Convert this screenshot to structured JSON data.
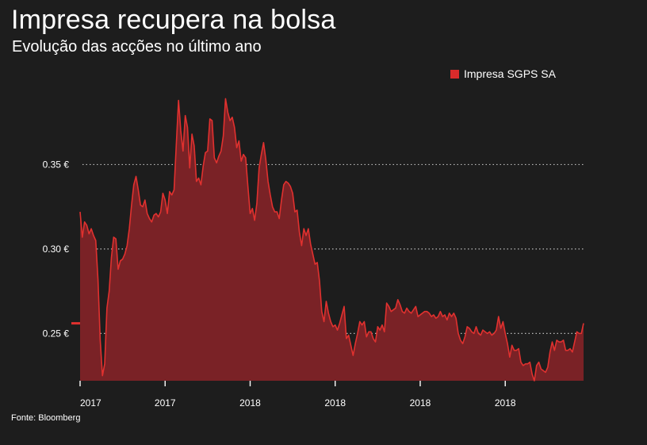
{
  "header": {
    "title": "Impresa recupera na bolsa",
    "subtitle": "Evolução das acções no último ano"
  },
  "footer": {
    "source": "Fonte: Bloomberg"
  },
  "colors": {
    "background": "#1d1d1d",
    "line": "#e0312f",
    "area": "#7a2226",
    "grid": "#bbbbbb"
  },
  "chart_data": {
    "type": "area",
    "title": "Impresa recupera na bolsa",
    "subtitle": "Evolução das acções no último ano",
    "xlabel": "",
    "ylabel": "",
    "ylim": [
      0.222,
      0.392
    ],
    "y_ticks": [
      0.25,
      0.3,
      0.35
    ],
    "y_tick_labels": [
      "0.25 €",
      "0.30 €",
      "0.35 €"
    ],
    "x_tick_labels": [
      "2017",
      "2017",
      "2018",
      "2018",
      "2018",
      "2018"
    ],
    "x_tick_positions": [
      0,
      38,
      76,
      114,
      152,
      190
    ],
    "grid": "horizontal-dotted",
    "legend": {
      "position": "top-right",
      "entries": [
        "Impresa SGPS SA"
      ]
    },
    "series": [
      {
        "name": "Impresa SGPS SA",
        "values": [
          0.322,
          0.307,
          0.316,
          0.314,
          0.309,
          0.312,
          0.308,
          0.305,
          0.282,
          0.246,
          0.225,
          0.232,
          0.265,
          0.275,
          0.295,
          0.307,
          0.306,
          0.288,
          0.293,
          0.294,
          0.297,
          0.302,
          0.312,
          0.326,
          0.338,
          0.343,
          0.335,
          0.326,
          0.325,
          0.329,
          0.321,
          0.318,
          0.316,
          0.32,
          0.321,
          0.319,
          0.322,
          0.333,
          0.329,
          0.321,
          0.334,
          0.332,
          0.335,
          0.362,
          0.388,
          0.37,
          0.358,
          0.379,
          0.372,
          0.348,
          0.368,
          0.361,
          0.34,
          0.342,
          0.338,
          0.349,
          0.357,
          0.358,
          0.377,
          0.376,
          0.354,
          0.351,
          0.355,
          0.358,
          0.367,
          0.389,
          0.381,
          0.376,
          0.378,
          0.372,
          0.36,
          0.364,
          0.352,
          0.356,
          0.354,
          0.337,
          0.321,
          0.324,
          0.317,
          0.327,
          0.348,
          0.356,
          0.363,
          0.353,
          0.34,
          0.332,
          0.325,
          0.322,
          0.322,
          0.318,
          0.329,
          0.338,
          0.34,
          0.339,
          0.337,
          0.333,
          0.322,
          0.323,
          0.31,
          0.302,
          0.312,
          0.308,
          0.312,
          0.303,
          0.297,
          0.291,
          0.292,
          0.281,
          0.263,
          0.257,
          0.269,
          0.262,
          0.257,
          0.254,
          0.255,
          0.252,
          0.256,
          0.261,
          0.266,
          0.247,
          0.249,
          0.243,
          0.237,
          0.244,
          0.25,
          0.257,
          0.255,
          0.257,
          0.248,
          0.251,
          0.251,
          0.247,
          0.245,
          0.254,
          0.252,
          0.255,
          0.251,
          0.268,
          0.266,
          0.263,
          0.264,
          0.265,
          0.27,
          0.267,
          0.263,
          0.262,
          0.265,
          0.263,
          0.262,
          0.264,
          0.266,
          0.26,
          0.261,
          0.262,
          0.263,
          0.263,
          0.262,
          0.26,
          0.261,
          0.259,
          0.26,
          0.263,
          0.26,
          0.261,
          0.258,
          0.262,
          0.26,
          0.262,
          0.259,
          0.25,
          0.246,
          0.244,
          0.248,
          0.254,
          0.253,
          0.251,
          0.25,
          0.254,
          0.25,
          0.249,
          0.252,
          0.251,
          0.25,
          0.251,
          0.249,
          0.25,
          0.252,
          0.26,
          0.253,
          0.257,
          0.25,
          0.244,
          0.236,
          0.243,
          0.24,
          0.24,
          0.241,
          0.233,
          0.231,
          0.232,
          0.232,
          0.233,
          0.226,
          0.222,
          0.231,
          0.233,
          0.229,
          0.228,
          0.227,
          0.23,
          0.239,
          0.245,
          0.24,
          0.246,
          0.245,
          0.245,
          0.246,
          0.24,
          0.24,
          0.241,
          0.239,
          0.245,
          0.251,
          0.25,
          0.25,
          0.256
        ]
      }
    ],
    "start_marker_value": 0.256
  }
}
